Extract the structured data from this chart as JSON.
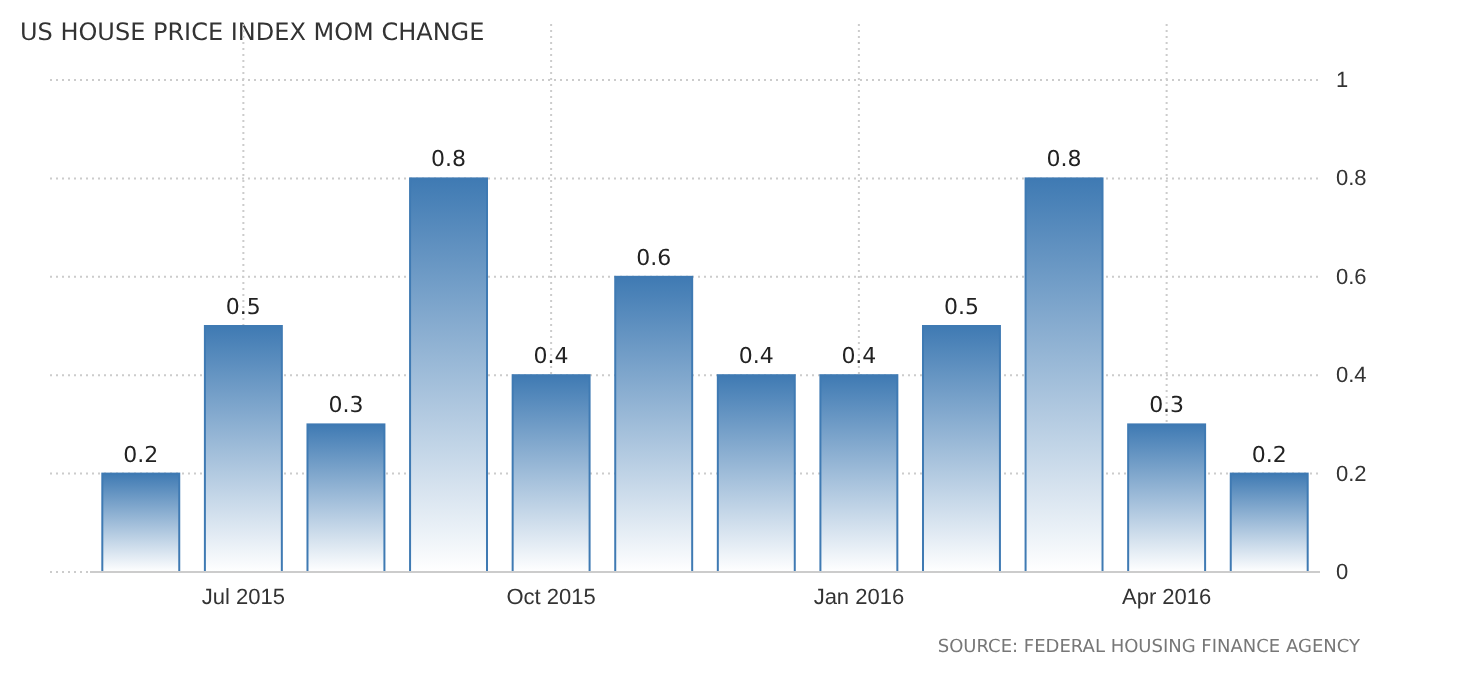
{
  "chart_data": {
    "type": "bar",
    "title": "US HOUSE PRICE INDEX MOM CHANGE",
    "categories": [
      null,
      "Jul 2015",
      null,
      null,
      "Oct 2015",
      null,
      null,
      "Jan 2016",
      null,
      null,
      "Apr 2016",
      null
    ],
    "values": [
      0.2,
      0.5,
      0.3,
      0.8,
      0.4,
      0.6,
      0.4,
      0.4,
      0.5,
      0.8,
      0.3,
      0.2
    ],
    "color": "#3f7ab3",
    "ylim": [
      0,
      1
    ],
    "yticks": [
      0,
      0.2,
      0.4,
      0.6,
      0.8,
      1
    ],
    "grid": true,
    "data_labels": true,
    "annotations": [
      "SOURCE: FEDERAL HOUSING FINANCE AGENCY"
    ]
  }
}
